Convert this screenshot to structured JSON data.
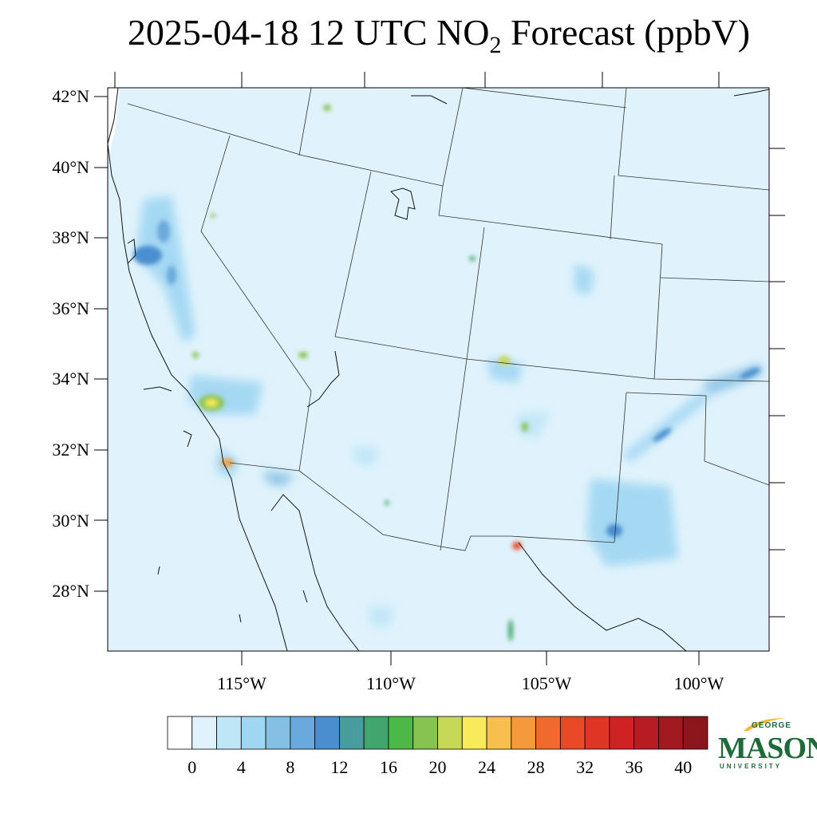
{
  "title": {
    "main": "2025-04-18 12 UTC NO",
    "sub": "2",
    "tail": " Forecast (ppbV)"
  },
  "lat_ticks": [
    {
      "label": "42°N",
      "value": 42
    },
    {
      "label": "40°N",
      "value": 40
    },
    {
      "label": "38°N",
      "value": 38
    },
    {
      "label": "36°N",
      "value": 36
    },
    {
      "label": "34°N",
      "value": 34
    },
    {
      "label": "32°N",
      "value": 32
    },
    {
      "label": "30°N",
      "value": 30
    },
    {
      "label": "28°N",
      "value": 28
    }
  ],
  "lon_ticks": [
    {
      "label": "115°W",
      "value": -115
    },
    {
      "label": "110°W",
      "value": -110
    },
    {
      "label": "105°W",
      "value": -105
    },
    {
      "label": "100°W",
      "value": -100
    }
  ],
  "colorbar": {
    "labels": [
      "0",
      "4",
      "8",
      "12",
      "16",
      "20",
      "24",
      "28",
      "32",
      "36",
      "40"
    ],
    "colors": [
      "#ffffff",
      "#e0f3fc",
      "#bfe6f7",
      "#9fd6f2",
      "#84bfe4",
      "#6aa9dc",
      "#4a8ecf",
      "#489c9e",
      "#42a66c",
      "#4cb848",
      "#86c350",
      "#c6d855",
      "#f8ea5a",
      "#f7c04e",
      "#f59a3c",
      "#f06a2d",
      "#e84a28",
      "#df3526",
      "#d02225",
      "#b71c23",
      "#a11a21",
      "#8b161d"
    ]
  },
  "logo": {
    "line1": "GEORGE",
    "line2": "MASON",
    "line3": "UNIVERSITY"
  }
}
